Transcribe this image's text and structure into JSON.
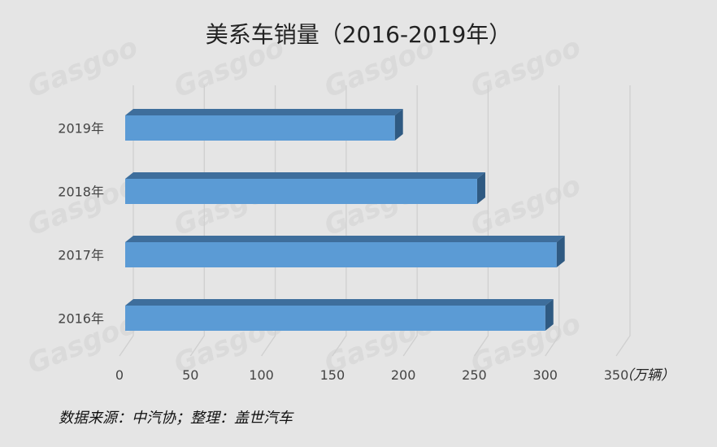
{
  "chart_data": {
    "type": "bar",
    "orientation": "horizontal",
    "title": "美系车销量（2016-2019年）",
    "categories": [
      "2019年",
      "2018年",
      "2017年",
      "2016年"
    ],
    "series": [
      {
        "values": [
          190,
          248,
          304,
          296
        ]
      }
    ],
    "xlim": [
      0,
      350
    ],
    "xticks": [
      "0",
      "50",
      "100",
      "150",
      "200",
      "250",
      "300",
      "350"
    ],
    "unit": "（万辆）",
    "grid": true,
    "style": "3d"
  },
  "footer": {
    "source": "数据来源：中汽协；整理：盖世汽车"
  },
  "colors": {
    "background": "#e5e5e5",
    "bar_front": "#5b9bd5",
    "bar_top": "#3e6e9c",
    "bar_side": "#2f5a82"
  }
}
